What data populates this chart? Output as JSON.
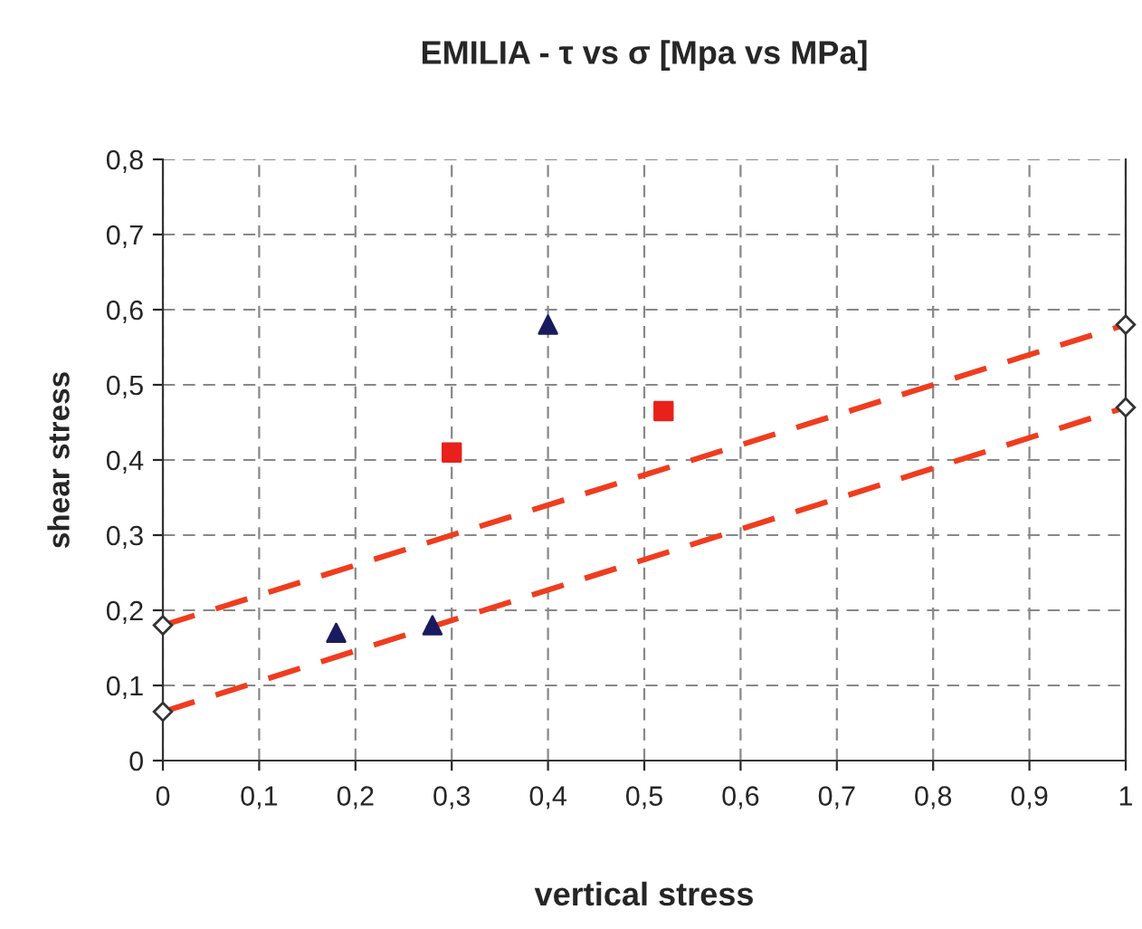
{
  "chart_data": {
    "type": "scatter",
    "title": "EMILIA - τ vs σ [Mpa vs MPa]",
    "xlabel": "vertical stress",
    "ylabel": "shear stress",
    "series": [
      {
        "marker": "triangle",
        "color": "#1a1a5e",
        "x": [
          0.18,
          0.28,
          0.4
        ],
        "values": [
          0.17,
          0.18,
          0.58
        ]
      },
      {
        "marker": "square",
        "color": "#e8211c",
        "x": [
          0.3,
          0.52
        ],
        "values": [
          0.41,
          0.465
        ]
      },
      {
        "type": "line",
        "marker": "diamond",
        "line_style": "dashed",
        "color": "#f03c1e",
        "x": [
          0,
          1
        ],
        "values": [
          0.18,
          0.58
        ]
      },
      {
        "type": "line",
        "marker": "diamond",
        "line_style": "dashed",
        "color": "#f03c1e",
        "x": [
          0,
          1
        ],
        "values": [
          0.065,
          0.47
        ]
      }
    ],
    "xlim": [
      0,
      1
    ],
    "ylim": [
      0,
      0.8
    ],
    "xticks": [
      0,
      {
        "value": 0.1,
        "label": "0,1"
      },
      {
        "value": 0.2,
        "label": "0,2"
      },
      {
        "value": 0.3,
        "label": "0,3"
      },
      {
        "value": 0.4,
        "label": "0,4"
      },
      {
        "value": 0.5,
        "label": "0,5"
      },
      {
        "value": 0.6,
        "label": "0,6"
      },
      {
        "value": 0.7,
        "label": "0,7"
      },
      {
        "value": 0.8,
        "label": "0,8"
      },
      {
        "value": 0.9,
        "label": "0,9"
      },
      1
    ],
    "yticks": [
      0,
      {
        "value": 0.1,
        "label": "0,1"
      },
      {
        "value": 0.2,
        "label": "0,2"
      },
      {
        "value": 0.3,
        "label": "0,3"
      },
      {
        "value": 0.4,
        "label": "0,4"
      },
      {
        "value": 0.5,
        "label": "0,5"
      },
      {
        "value": 0.6,
        "label": "0,6"
      },
      {
        "value": 0.7,
        "label": "0,7"
      },
      {
        "value": 0.8,
        "label": "0,8"
      }
    ],
    "grid": true
  }
}
